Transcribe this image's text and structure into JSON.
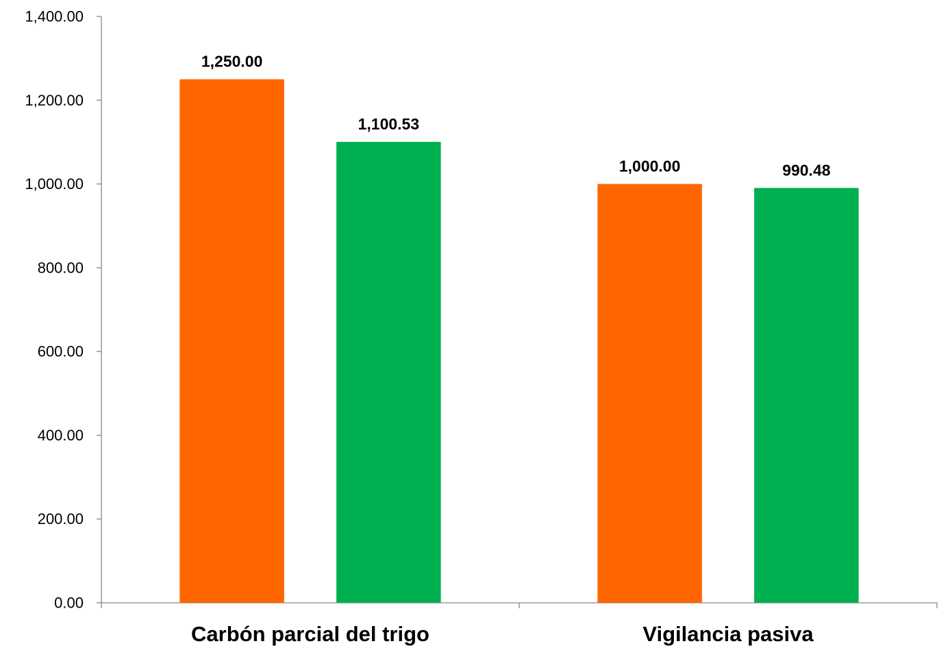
{
  "chart_data": {
    "type": "bar",
    "title": "",
    "xlabel": "",
    "ylabel": "",
    "categories": [
      "Carbón parcial del trigo",
      "Vigilancia pasiva"
    ],
    "series": [
      {
        "values": [
          1250.0,
          1000.0
        ],
        "labels": [
          "1,250.00",
          "1,000.00"
        ],
        "color": "#ff6600"
      },
      {
        "values": [
          1100.53,
          990.48
        ],
        "labels": [
          "1,100.53",
          "990.48"
        ],
        "color": "#00b050"
      }
    ],
    "ylim": [
      0,
      1400
    ],
    "yticks": [
      0,
      200,
      400,
      600,
      800,
      1000,
      1200,
      1400
    ],
    "ytick_labels": [
      "0.00",
      "200.00",
      "400.00",
      "600.00",
      "800.00",
      "1,000.00",
      "1,200.00",
      "1,400.00"
    ],
    "grid": false,
    "legend": "none"
  }
}
